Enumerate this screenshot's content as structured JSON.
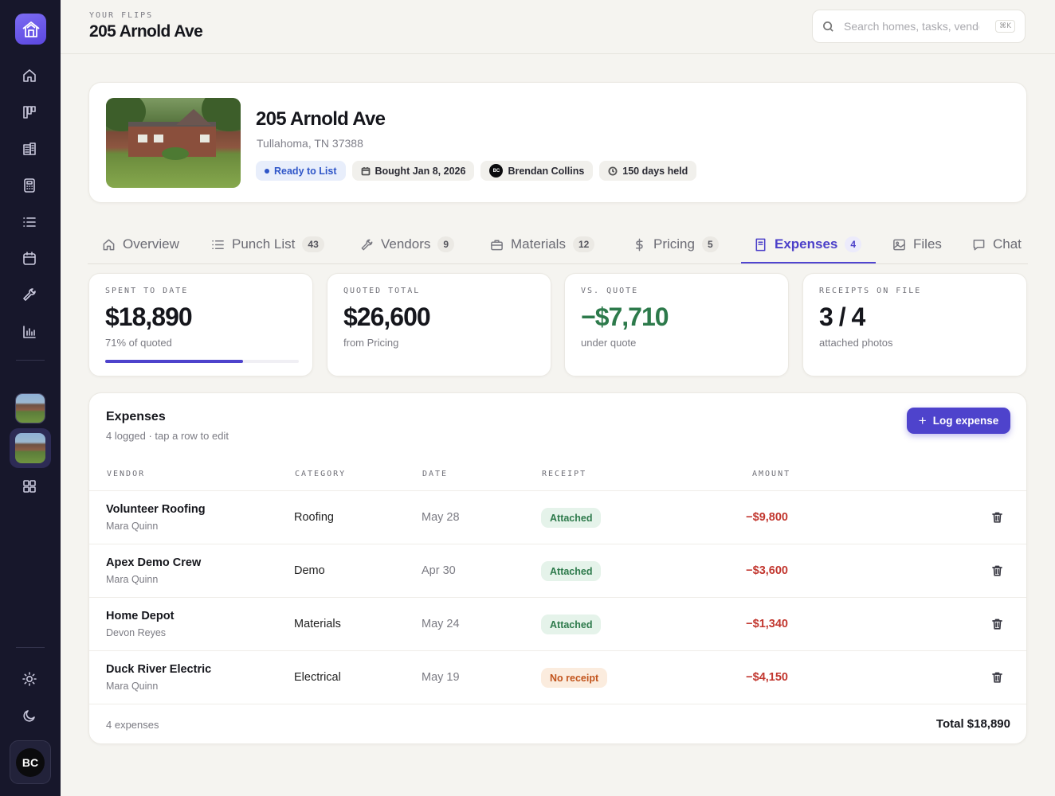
{
  "header": {
    "eyebrow": "YOUR FLIPS",
    "title": "205 Arnold Ave",
    "search_placeholder": "Search homes, tasks, vendors",
    "search_shortcut": "⌘K"
  },
  "sidebar": {
    "nav": [
      "home-icon",
      "board-icon",
      "building-icon",
      "calculator-icon",
      "list-icon",
      "calendar-icon",
      "wrench-icon",
      "chart-icon"
    ],
    "flips": [
      "house-thumbnail-1",
      "house-thumbnail-2"
    ],
    "bottom": [
      "sun-icon",
      "moon-icon"
    ],
    "user_initials": "BC"
  },
  "property": {
    "name": "205 Arnold Ave",
    "address": "Tullahoma, TN 37388",
    "status": "Ready to List",
    "bought": "Bought Jan 8, 2026",
    "owner_initials": "BC",
    "owner": "Brendan Collins",
    "days_held": "150 days held"
  },
  "tabs": [
    {
      "label": "Overview",
      "count": "",
      "icon": "home-icon"
    },
    {
      "label": "Punch List",
      "count": "43",
      "icon": "list-icon"
    },
    {
      "label": "Vendors",
      "count": "9",
      "icon": "wrench-icon"
    },
    {
      "label": "Materials",
      "count": "12",
      "icon": "toolbox-icon"
    },
    {
      "label": "Pricing",
      "count": "5",
      "icon": "dollar-icon"
    },
    {
      "label": "Expenses",
      "count": "4",
      "icon": "receipt-icon"
    },
    {
      "label": "Files",
      "count": "",
      "icon": "image-icon"
    },
    {
      "label": "Chat",
      "count": "",
      "icon": "chat-icon"
    }
  ],
  "active_tab": "Expenses",
  "stats": {
    "spent": {
      "label": "SPENT TO DATE",
      "value": "$18,890",
      "sub": "71% of quoted",
      "progress_percent": 71
    },
    "quoted": {
      "label": "QUOTED TOTAL",
      "value": "$26,600",
      "sub": "from Pricing"
    },
    "vs_quote": {
      "label": "VS. QUOTE",
      "value": "−$7,710",
      "sub": "under quote"
    },
    "receipts": {
      "label": "RECEIPTS ON FILE",
      "value": "3 / 4",
      "sub": "attached photos"
    }
  },
  "expenses": {
    "title": "Expenses",
    "subtitle": "4 logged · tap a row to edit",
    "button_label": "Log expense",
    "columns": {
      "vendor": "VENDOR",
      "category": "CATEGORY",
      "date": "DATE",
      "receipt": "RECEIPT",
      "amount": "AMOUNT"
    },
    "rows": [
      {
        "vendor": "Volunteer Roofing",
        "person": "Mara Quinn",
        "category": "Roofing",
        "date": "May 28",
        "receipt": "Attached",
        "receipt_ok": true,
        "amount": "−$9,800"
      },
      {
        "vendor": "Apex Demo Crew",
        "person": "Mara Quinn",
        "category": "Demo",
        "date": "Apr 30",
        "receipt": "Attached",
        "receipt_ok": true,
        "amount": "−$3,600"
      },
      {
        "vendor": "Home Depot",
        "person": "Devon Reyes",
        "category": "Materials",
        "date": "May 24",
        "receipt": "Attached",
        "receipt_ok": true,
        "amount": "−$1,340"
      },
      {
        "vendor": "Duck River Electric",
        "person": "Mara Quinn",
        "category": "Electrical",
        "date": "May 19",
        "receipt": "No receipt",
        "receipt_ok": false,
        "amount": "−$4,150"
      }
    ],
    "footer_count": "4 expenses",
    "footer_total": "Total $18,890"
  },
  "colors": {
    "accent": "#4e43cc",
    "sidebar": "#17172b",
    "negative": "#c2372f",
    "positive": "#2d7a4b",
    "warning": "#c2541c"
  }
}
